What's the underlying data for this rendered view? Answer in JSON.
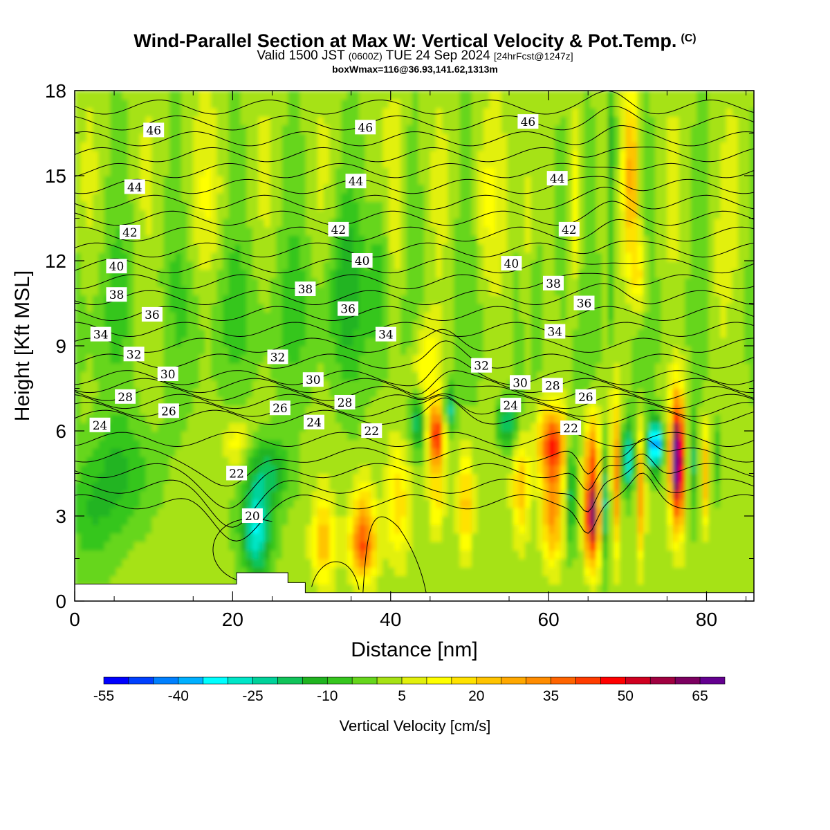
{
  "header": {
    "title": "Wind-Parallel Section at Max W: Vertical Velocity & Pot.Temp.",
    "copyright": "(C)",
    "valid_prefix": "Valid 1500 JST",
    "valid_utc": "(0600Z)",
    "valid_date": "TUE 24 Sep 2024",
    "forecast_tag": "[24hrFcst@1247z]",
    "box_info": "boxWmax=116@36.93,141.62,1313m"
  },
  "colors": {
    "palette": [
      "#0000ff",
      "#0040ff",
      "#0080ff",
      "#00b0ff",
      "#00ffff",
      "#00e6c8",
      "#00d29a",
      "#10c45a",
      "#20b420",
      "#36c61e",
      "#66d61c",
      "#a6e214",
      "#e2f00c",
      "#ffff00",
      "#ffe200",
      "#ffc400",
      "#ffa800",
      "#ff8c00",
      "#ff6400",
      "#ff3c00",
      "#ff0000",
      "#d00020",
      "#a00040",
      "#7c0060",
      "#640090"
    ]
  },
  "chart_data": {
    "type": "heatmap",
    "xlabel": "Distance [nm]",
    "ylabel": "Height [Kft MSL]",
    "xlim": [
      0,
      86
    ],
    "ylim": [
      0,
      18
    ],
    "x_ticks": [
      0,
      20,
      40,
      60,
      80
    ],
    "y_ticks": [
      0,
      3,
      6,
      9,
      12,
      15,
      18
    ],
    "colorbar": {
      "label": "Vertical Velocity [cm/s]",
      "min": -55,
      "max": 70,
      "step": 5,
      "tick_labels": [
        "-55",
        "-40",
        "-25",
        "-10",
        "5",
        "20",
        "35",
        "50",
        "65"
      ]
    },
    "terrain": [
      [
        0,
        0.6
      ],
      [
        20.5,
        0.6
      ],
      [
        20.5,
        1.0
      ],
      [
        27,
        1.0
      ],
      [
        27,
        0.65
      ],
      [
        29.2,
        0.65
      ],
      [
        29.2,
        0.3
      ],
      [
        86,
        0.3
      ]
    ],
    "velocity_features": [
      {
        "x": 23,
        "z": 2.5,
        "w": -30
      },
      {
        "x": 36.5,
        "z": 2.0,
        "w": 35
      },
      {
        "x": 45.8,
        "z": 5.8,
        "w": 45
      },
      {
        "x": 60.5,
        "z": 5.5,
        "w": 40
      },
      {
        "x": 65.5,
        "z": 3.0,
        "w": 60
      },
      {
        "x": 70,
        "z": 5.0,
        "w": -30
      },
      {
        "x": 73.5,
        "z": 5.5,
        "w": -45
      },
      {
        "x": 76.3,
        "z": 5.0,
        "w": 70
      },
      {
        "x": 68,
        "z": 16,
        "w": -20
      },
      {
        "x": 70.5,
        "z": 15,
        "w": 25
      }
    ],
    "theta_contours": {
      "units": "degC",
      "labels": [
        {
          "text": "46",
          "x": 10,
          "z": 16.6
        },
        {
          "text": "46",
          "x": 36.8,
          "z": 16.7
        },
        {
          "text": "46",
          "x": 57.4,
          "z": 16.9
        },
        {
          "text": "44",
          "x": 7.6,
          "z": 14.6
        },
        {
          "text": "44",
          "x": 35.6,
          "z": 14.8
        },
        {
          "text": "44",
          "x": 61.1,
          "z": 14.9
        },
        {
          "text": "42",
          "x": 7,
          "z": 13.0
        },
        {
          "text": "42",
          "x": 33.4,
          "z": 13.1
        },
        {
          "text": "42",
          "x": 62.6,
          "z": 13.1
        },
        {
          "text": "40",
          "x": 5.3,
          "z": 11.8
        },
        {
          "text": "40",
          "x": 36.4,
          "z": 12.0
        },
        {
          "text": "40",
          "x": 55.3,
          "z": 11.9
        },
        {
          "text": "38",
          "x": 5.3,
          "z": 10.8
        },
        {
          "text": "38",
          "x": 29.2,
          "z": 11.0
        },
        {
          "text": "38",
          "x": 60.6,
          "z": 11.2
        },
        {
          "text": "36",
          "x": 9.8,
          "z": 10.1
        },
        {
          "text": "36",
          "x": 34.6,
          "z": 10.3
        },
        {
          "text": "36",
          "x": 64.5,
          "z": 10.5
        },
        {
          "text": "34",
          "x": 3.3,
          "z": 9.4
        },
        {
          "text": "34",
          "x": 39.4,
          "z": 9.4
        },
        {
          "text": "34",
          "x": 60.8,
          "z": 9.5
        },
        {
          "text": "32",
          "x": 7.5,
          "z": 8.7
        },
        {
          "text": "32",
          "x": 25.7,
          "z": 8.6
        },
        {
          "text": "32",
          "x": 51.5,
          "z": 8.3
        },
        {
          "text": "30",
          "x": 11.8,
          "z": 8.0
        },
        {
          "text": "30",
          "x": 30.2,
          "z": 7.8
        },
        {
          "text": "30",
          "x": 56.4,
          "z": 7.7
        },
        {
          "text": "28",
          "x": 6.4,
          "z": 7.2
        },
        {
          "text": "28",
          "x": 34.2,
          "z": 7.0
        },
        {
          "text": "28",
          "x": 60.5,
          "z": 7.6
        },
        {
          "text": "26",
          "x": 11.9,
          "z": 6.7
        },
        {
          "text": "26",
          "x": 26,
          "z": 6.8
        },
        {
          "text": "26",
          "x": 64.7,
          "z": 7.2
        },
        {
          "text": "24",
          "x": 3.2,
          "z": 6.2
        },
        {
          "text": "24",
          "x": 30.3,
          "z": 6.3
        },
        {
          "text": "24",
          "x": 55.2,
          "z": 6.9
        },
        {
          "text": "22",
          "x": 20.5,
          "z": 4.5
        },
        {
          "text": "22",
          "x": 37.6,
          "z": 6.0
        },
        {
          "text": "22",
          "x": 62.8,
          "z": 6.1
        },
        {
          "text": "20",
          "x": 22.5,
          "z": 3.0
        }
      ]
    }
  }
}
